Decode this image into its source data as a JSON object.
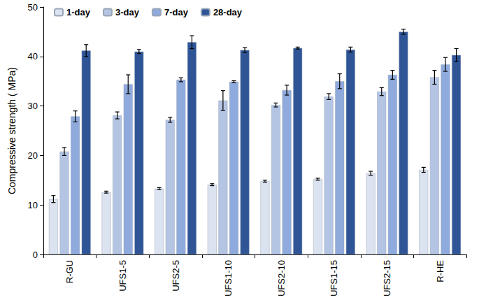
{
  "chart_data": {
    "type": "bar",
    "y_label": "Compressive strength ( MPa)",
    "categories": [
      "R-GU",
      "UFS1-5",
      "UFS2-5",
      "UFS1-10",
      "UFS2-10",
      "UFS1-15",
      "UFS2-15",
      "R-HE"
    ],
    "series": [
      {
        "name": "1-day",
        "color": "#dce3f0",
        "values": [
          11.2,
          12.6,
          13.3,
          14.1,
          14.8,
          15.2,
          16.4,
          17.1
        ],
        "errors": [
          0.7,
          0.2,
          0.2,
          0.2,
          0.2,
          0.2,
          0.4,
          0.5
        ]
      },
      {
        "name": "3-day",
        "color": "#b4c5e4",
        "values": [
          20.8,
          28.1,
          27.2,
          31.1,
          30.2,
          31.9,
          32.9,
          35.8
        ],
        "errors": [
          0.8,
          0.7,
          0.5,
          2.0,
          0.4,
          0.6,
          0.8,
          1.4
        ]
      },
      {
        "name": "7-day",
        "color": "#8faadc",
        "values": [
          27.9,
          34.4,
          35.3,
          34.9,
          33.2,
          35.0,
          36.3,
          38.4
        ],
        "errors": [
          1.1,
          1.9,
          0.4,
          0.2,
          1.0,
          1.5,
          0.9,
          1.4
        ]
      },
      {
        "name": "28-day",
        "color": "#2f5597",
        "values": [
          41.2,
          41.0,
          42.9,
          41.3,
          41.7,
          41.4,
          45.0,
          40.3
        ],
        "errors": [
          1.2,
          0.4,
          1.3,
          0.5,
          0.2,
          0.5,
          0.5,
          1.3
        ]
      }
    ],
    "ylim": [
      0,
      50
    ],
    "yticks": [
      0,
      10,
      20,
      30,
      40,
      50
    ],
    "grid": false,
    "legend": "upper left"
  }
}
